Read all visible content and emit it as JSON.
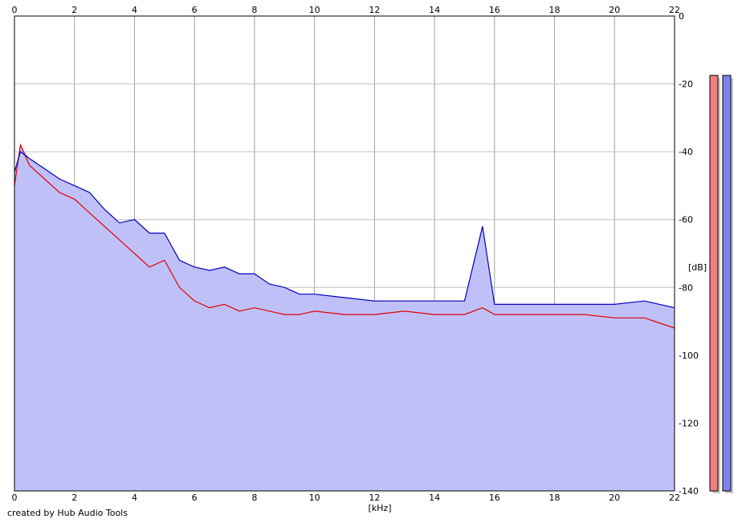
{
  "footer_text": "created by Hub Audio Tools",
  "chart_data": {
    "type": "area",
    "xlabel": "[kHz]",
    "ylabel": "[dB]",
    "xlim": [
      0,
      22
    ],
    "ylim": [
      -140,
      0
    ],
    "x_ticks": [
      0,
      2,
      4,
      6,
      8,
      10,
      12,
      14,
      16,
      18,
      20,
      22
    ],
    "y_ticks": [
      0,
      -20,
      -40,
      -60,
      -80,
      -100,
      -120,
      -140
    ],
    "x_tick_labels": [
      "0",
      "2",
      "4",
      "6",
      "8",
      "10",
      "12",
      "14",
      "16",
      "18",
      "20",
      "22"
    ],
    "y_tick_labels": [
      "0",
      "-20",
      "-40",
      "-60",
      "-80",
      "-100",
      "-120",
      "-140"
    ],
    "grid": true,
    "fill_color": "#c0c0f8",
    "series": [
      {
        "color": "#e00000",
        "x": [
          0,
          0.2,
          0.5,
          1,
          1.5,
          2,
          2.5,
          3,
          3.5,
          4,
          4.5,
          5,
          5.5,
          6,
          6.5,
          7,
          7.5,
          8,
          8.5,
          9,
          9.5,
          10,
          11,
          12,
          13,
          14,
          15,
          15.6,
          16,
          17,
          18,
          19,
          20,
          21,
          22
        ],
        "values": [
          -50,
          -38,
          -44,
          -48,
          -52,
          -54,
          -58,
          -62,
          -66,
          -70,
          -74,
          -72,
          -80,
          -84,
          -86,
          -85,
          -87,
          -86,
          -87,
          -88,
          -88,
          -87,
          -88,
          -88,
          -87,
          -88,
          -88,
          -86,
          -88,
          -88,
          -88,
          -88,
          -89,
          -89,
          -92
        ]
      },
      {
        "color": "#0000c0",
        "x": [
          0,
          0.2,
          0.5,
          1,
          1.5,
          2,
          2.5,
          3,
          3.5,
          4,
          4.5,
          5,
          5.5,
          6,
          6.5,
          7,
          7.5,
          8,
          8.5,
          9,
          9.5,
          10,
          11,
          12,
          13,
          14,
          15,
          15.6,
          16,
          17,
          18,
          19,
          20,
          21,
          22
        ],
        "values": [
          -46,
          -40,
          -42,
          -45,
          -48,
          -50,
          -52,
          -57,
          -61,
          -60,
          -64,
          -64,
          -72,
          -74,
          -75,
          -74,
          -76,
          -76,
          -79,
          -80,
          -82,
          -82,
          -83,
          -84,
          -84,
          -84,
          -84,
          -62,
          -85,
          -85,
          -85,
          -85,
          -85,
          -84,
          -86
        ]
      }
    ],
    "level_meters": [
      {
        "color": "#f08080"
      },
      {
        "color": "#8080f0"
      }
    ]
  }
}
